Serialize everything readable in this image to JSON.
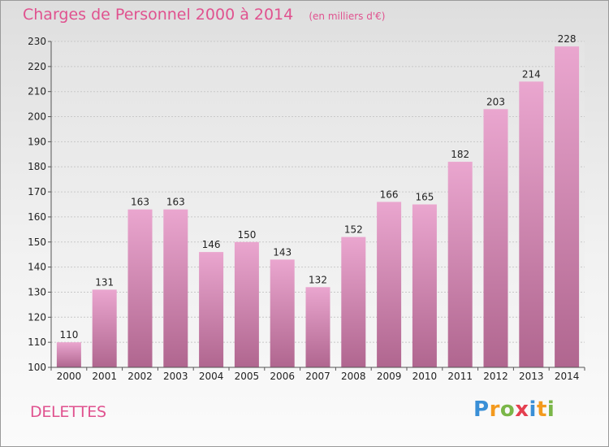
{
  "title": "Charges de Personnel 2000 à 2014",
  "subtitle": "(en milliers d'€)",
  "location": "DELETTES",
  "logo": {
    "letters": [
      "P",
      "r",
      "o",
      "x",
      "i",
      "t",
      "i"
    ],
    "colors": [
      "#3a8fd6",
      "#f39a1e",
      "#7ab648",
      "#e43f4f",
      "#3a8fd6",
      "#f39a1e",
      "#7ab648"
    ]
  },
  "colors": {
    "bar_light": "#eaa6cf",
    "bar_dark": "#b0668f",
    "title": "#e0528f",
    "grid": "#c8c8c8"
  },
  "chart_data": {
    "type": "bar",
    "title": "Charges de Personnel 2000 à 2014",
    "subtitle": "(en milliers d'€)",
    "xlabel": "",
    "ylabel": "",
    "categories": [
      "2000",
      "2001",
      "2002",
      "2003",
      "2004",
      "2005",
      "2006",
      "2007",
      "2008",
      "2009",
      "2010",
      "2011",
      "2012",
      "2013",
      "2014"
    ],
    "values": [
      110,
      131,
      163,
      163,
      146,
      150,
      143,
      132,
      152,
      166,
      165,
      182,
      203,
      214,
      228
    ],
    "ylim": [
      100,
      230
    ],
    "yticks": [
      100,
      110,
      120,
      130,
      140,
      150,
      160,
      170,
      180,
      190,
      200,
      210,
      220,
      230
    ],
    "grid": true,
    "legend": "none"
  }
}
